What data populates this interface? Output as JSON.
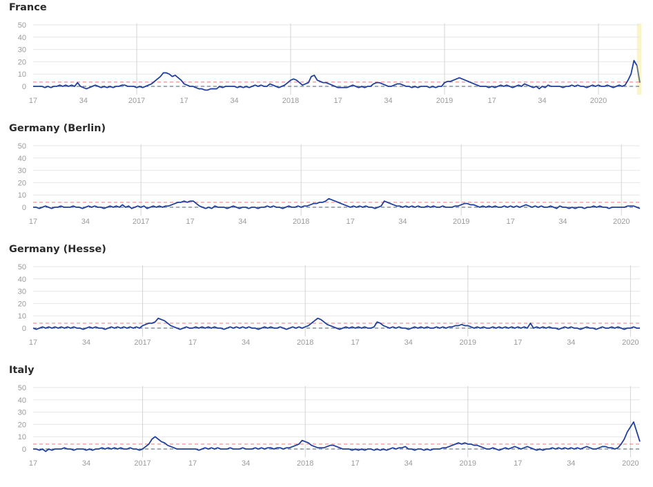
{
  "chart_data": [
    {
      "type": "line",
      "title": "France",
      "ylim": [
        0,
        50
      ],
      "yticks": [
        0,
        10,
        20,
        30,
        40,
        50
      ],
      "xticks": [
        {
          "label": "17",
          "i": 0
        },
        {
          "label": "34",
          "i": 17
        },
        {
          "label": "2017",
          "i": 35
        },
        {
          "label": "17",
          "i": 51
        },
        {
          "label": "34",
          "i": 68
        },
        {
          "label": "2018",
          "i": 87
        },
        {
          "label": "17",
          "i": 103
        },
        {
          "label": "34",
          "i": 120
        },
        {
          "label": "2019",
          "i": 139
        },
        {
          "label": "17",
          "i": 155
        },
        {
          "label": "34",
          "i": 172
        },
        {
          "label": "2020",
          "i": 191
        }
      ],
      "year_lines": [
        35,
        87,
        139,
        191
      ],
      "highlight_start_index": 204,
      "reference_lines": {
        "upper": 3.5,
        "baseline": 0
      },
      "series": [
        {
          "values": [
            0,
            0,
            0,
            0,
            -1,
            0,
            -1,
            0,
            0,
            1,
            0,
            1,
            0,
            1,
            0,
            3,
            0,
            -1,
            -2,
            -1,
            0,
            1,
            0,
            -1,
            0,
            -1,
            0,
            -1,
            0,
            0,
            1,
            1,
            0,
            0,
            0,
            -1,
            0,
            -1,
            0,
            1,
            2,
            4,
            6,
            8,
            11,
            11,
            10,
            8,
            9,
            7,
            5,
            2,
            1,
            0,
            0,
            -1,
            -2,
            -2,
            -3,
            -3,
            -2,
            -2,
            -2,
            0,
            -1,
            0,
            0,
            0,
            0,
            -1,
            0,
            -1,
            0,
            -1,
            0,
            1,
            0,
            1,
            0,
            0,
            2,
            1,
            0,
            -1,
            0,
            1,
            3,
            5,
            6,
            5,
            3,
            1,
            2,
            3,
            8,
            9,
            5,
            4,
            3,
            3,
            2,
            1,
            0,
            -1,
            -1,
            -1,
            -1,
            0,
            1,
            0,
            -1,
            0,
            -1,
            0,
            0,
            2,
            3,
            3,
            2,
            1,
            0,
            0,
            1,
            2,
            2,
            1,
            0,
            0,
            -1,
            0,
            -1,
            0,
            0,
            0,
            -1,
            0,
            -1,
            0,
            0,
            3,
            4,
            4,
            5,
            6,
            7,
            6,
            5,
            4,
            3,
            2,
            1,
            0,
            0,
            0,
            -1,
            0,
            -1,
            0,
            1,
            0,
            1,
            0,
            -1,
            0,
            1,
            0,
            2,
            1,
            0,
            -1,
            0,
            -2,
            0,
            -1,
            1,
            0,
            0,
            0,
            0,
            -1,
            0,
            0,
            1,
            0,
            1,
            0,
            0,
            -1,
            0,
            1,
            0,
            1,
            0,
            0,
            1,
            0,
            -1,
            0,
            1,
            0,
            1,
            5,
            10,
            21,
            17,
            3
          ]
        }
      ]
    },
    {
      "type": "line",
      "title": "Germany (Berlin)",
      "ylim": [
        0,
        50
      ],
      "yticks": [
        0,
        10,
        20,
        30,
        40,
        50
      ],
      "xticks": [
        {
          "label": "17",
          "i": 0
        },
        {
          "label": "34",
          "i": 17
        },
        {
          "label": "2017",
          "i": 35
        },
        {
          "label": "17",
          "i": 51
        },
        {
          "label": "34",
          "i": 68
        },
        {
          "label": "2018",
          "i": 87
        },
        {
          "label": "17",
          "i": 103
        },
        {
          "label": "34",
          "i": 120
        },
        {
          "label": "2019",
          "i": 139
        },
        {
          "label": "17",
          "i": 155
        },
        {
          "label": "34",
          "i": 172
        },
        {
          "label": "2020",
          "i": 191
        }
      ],
      "year_lines": [
        35,
        87,
        139,
        191
      ],
      "highlight_start_index": 204,
      "reference_lines": {
        "upper": 4,
        "baseline": 0
      },
      "series": [
        {
          "values": [
            0,
            0,
            -1,
            0,
            1,
            0,
            -1,
            0,
            0,
            1,
            0,
            0,
            0,
            1,
            0,
            0,
            -1,
            0,
            1,
            0,
            1,
            0,
            0,
            -1,
            0,
            1,
            0,
            1,
            0,
            2,
            0,
            1,
            -1,
            0,
            1,
            0,
            1,
            -1,
            0,
            1,
            0,
            1,
            0,
            1,
            1,
            2,
            3,
            4,
            4,
            5,
            4,
            5,
            5,
            3,
            1,
            0,
            -1,
            0,
            -1,
            1,
            0,
            0,
            0,
            -1,
            0,
            1,
            0,
            -1,
            0,
            0,
            -1,
            0,
            0,
            -1,
            0,
            0,
            1,
            0,
            1,
            0,
            0,
            -1,
            0,
            1,
            0,
            0,
            1,
            0,
            1,
            1,
            2,
            3,
            3,
            4,
            4,
            5,
            7,
            6,
            5,
            4,
            3,
            2,
            1,
            0,
            1,
            0,
            1,
            0,
            1,
            0,
            0,
            -1,
            0,
            1,
            5,
            4,
            3,
            2,
            1,
            1,
            0,
            1,
            0,
            1,
            0,
            1,
            0,
            0,
            1,
            0,
            1,
            0,
            0,
            1,
            0,
            0,
            0,
            1,
            1,
            2,
            3,
            3,
            2,
            2,
            1,
            0,
            1,
            0,
            1,
            0,
            1,
            0,
            0,
            1,
            0,
            1,
            0,
            1,
            0,
            1,
            2,
            1,
            0,
            1,
            0,
            1,
            0,
            0,
            1,
            0,
            -1,
            1,
            0,
            0,
            -1,
            0,
            -1,
            0,
            0,
            -1,
            0,
            0,
            1,
            0,
            1,
            0,
            0,
            -1,
            0,
            0,
            0,
            0,
            0,
            1,
            1,
            1,
            0,
            -1
          ]
        }
      ]
    },
    {
      "type": "line",
      "title": "Germany (Hesse)",
      "ylim": [
        0,
        50
      ],
      "yticks": [
        0,
        10,
        20,
        30,
        40,
        50
      ],
      "xticks": [
        {
          "label": "17",
          "i": 0
        },
        {
          "label": "34",
          "i": 17
        },
        {
          "label": "2017",
          "i": 35
        },
        {
          "label": "17",
          "i": 51
        },
        {
          "label": "34",
          "i": 68
        },
        {
          "label": "2018",
          "i": 87
        },
        {
          "label": "17",
          "i": 103
        },
        {
          "label": "34",
          "i": 120
        },
        {
          "label": "2019",
          "i": 139
        },
        {
          "label": "17",
          "i": 155
        },
        {
          "label": "34",
          "i": 172
        },
        {
          "label": "2020",
          "i": 191
        }
      ],
      "year_lines": [
        35,
        87,
        139,
        191
      ],
      "highlight_start_index": 204,
      "reference_lines": {
        "upper": 4,
        "baseline": 0
      },
      "series": [
        {
          "values": [
            0,
            -1,
            0,
            1,
            0,
            1,
            0,
            1,
            0,
            1,
            0,
            1,
            0,
            1,
            0,
            0,
            -1,
            0,
            1,
            0,
            1,
            0,
            0,
            -1,
            0,
            1,
            0,
            1,
            0,
            1,
            0,
            1,
            0,
            1,
            0,
            2,
            3,
            4,
            4,
            5,
            8,
            7,
            6,
            4,
            2,
            1,
            0,
            -1,
            0,
            1,
            0,
            0,
            1,
            0,
            1,
            0,
            1,
            0,
            1,
            0,
            0,
            -1,
            0,
            1,
            0,
            1,
            0,
            1,
            0,
            1,
            0,
            0,
            -1,
            0,
            1,
            0,
            1,
            0,
            0,
            1,
            0,
            -1,
            0,
            1,
            0,
            1,
            0,
            1,
            2,
            4,
            6,
            8,
            7,
            5,
            3,
            2,
            1,
            0,
            -1,
            0,
            1,
            0,
            1,
            0,
            1,
            0,
            1,
            0,
            0,
            1,
            5,
            4,
            2,
            1,
            0,
            1,
            0,
            1,
            0,
            0,
            -1,
            0,
            1,
            0,
            1,
            0,
            1,
            0,
            0,
            1,
            0,
            1,
            0,
            1,
            1,
            2,
            2,
            3,
            2,
            2,
            1,
            0,
            1,
            0,
            1,
            0,
            0,
            1,
            0,
            1,
            0,
            1,
            0,
            1,
            0,
            1,
            0,
            1,
            0,
            4,
            0,
            1,
            0,
            1,
            0,
            1,
            0,
            0,
            -1,
            0,
            1,
            0,
            1,
            0,
            0,
            -1,
            0,
            1,
            0,
            0,
            -1,
            0,
            1,
            0,
            0,
            1,
            0,
            1,
            0,
            -1,
            0,
            0,
            1,
            0,
            0
          ]
        }
      ]
    },
    {
      "type": "line",
      "title": "Italy",
      "ylim": [
        0,
        50
      ],
      "yticks": [
        0,
        10,
        20,
        30,
        40,
        50
      ],
      "xticks": [
        {
          "label": "17",
          "i": 0
        },
        {
          "label": "34",
          "i": 17
        },
        {
          "label": "2017",
          "i": 35
        },
        {
          "label": "17",
          "i": 51
        },
        {
          "label": "34",
          "i": 68
        },
        {
          "label": "2018",
          "i": 87
        },
        {
          "label": "17",
          "i": 103
        },
        {
          "label": "34",
          "i": 120
        },
        {
          "label": "2019",
          "i": 139
        },
        {
          "label": "17",
          "i": 155
        },
        {
          "label": "34",
          "i": 172
        },
        {
          "label": "2020",
          "i": 191
        }
      ],
      "year_lines": [
        35,
        87,
        139,
        191
      ],
      "highlight_start_index": 204,
      "reference_lines": {
        "upper": 4,
        "baseline": 0
      },
      "series": [
        {
          "values": [
            0,
            0,
            -1,
            0,
            -2,
            0,
            -1,
            0,
            0,
            0,
            1,
            0,
            0,
            -1,
            0,
            0,
            0,
            -1,
            0,
            -1,
            0,
            0,
            1,
            0,
            1,
            0,
            1,
            0,
            1,
            0,
            0,
            1,
            0,
            0,
            -1,
            0,
            2,
            4,
            8,
            10,
            8,
            6,
            5,
            3,
            2,
            1,
            0,
            0,
            0,
            0,
            0,
            0,
            0,
            -1,
            0,
            1,
            0,
            1,
            0,
            1,
            0,
            0,
            0,
            1,
            0,
            0,
            0,
            1,
            0,
            0,
            0,
            1,
            0,
            1,
            0,
            1,
            1,
            0,
            1,
            1,
            0,
            1,
            1,
            2,
            3,
            4,
            7,
            6,
            5,
            3,
            2,
            1,
            1,
            1,
            2,
            3,
            3,
            2,
            1,
            0,
            0,
            0,
            -1,
            0,
            -1,
            0,
            -1,
            0,
            0,
            -1,
            0,
            -1,
            0,
            -1,
            0,
            1,
            0,
            1,
            1,
            2,
            0,
            0,
            -1,
            0,
            0,
            -1,
            0,
            -1,
            0,
            0,
            0,
            1,
            1,
            2,
            3,
            4,
            5,
            4,
            5,
            4,
            4,
            3,
            3,
            2,
            1,
            0,
            0,
            1,
            0,
            -1,
            0,
            1,
            0,
            1,
            2,
            1,
            0,
            1,
            2,
            1,
            0,
            -1,
            0,
            -1,
            0,
            0,
            1,
            0,
            1,
            0,
            1,
            0,
            1,
            0,
            1,
            0,
            1,
            2,
            1,
            0,
            0,
            1,
            2,
            2,
            1,
            1,
            0,
            1,
            4,
            8,
            14,
            18,
            22,
            14,
            6
          ]
        }
      ]
    }
  ],
  "colors": {
    "line": "#1f3f9e",
    "line_recent": "#5f6e80",
    "upper_ref": "#f3a3a3",
    "baseline_ref": "#6a7a8a",
    "grid": "#e6e6e6",
    "year_line": "#d3d3d3",
    "highlight": "#fbf4c7",
    "tick_text": "#9a9a9a"
  }
}
